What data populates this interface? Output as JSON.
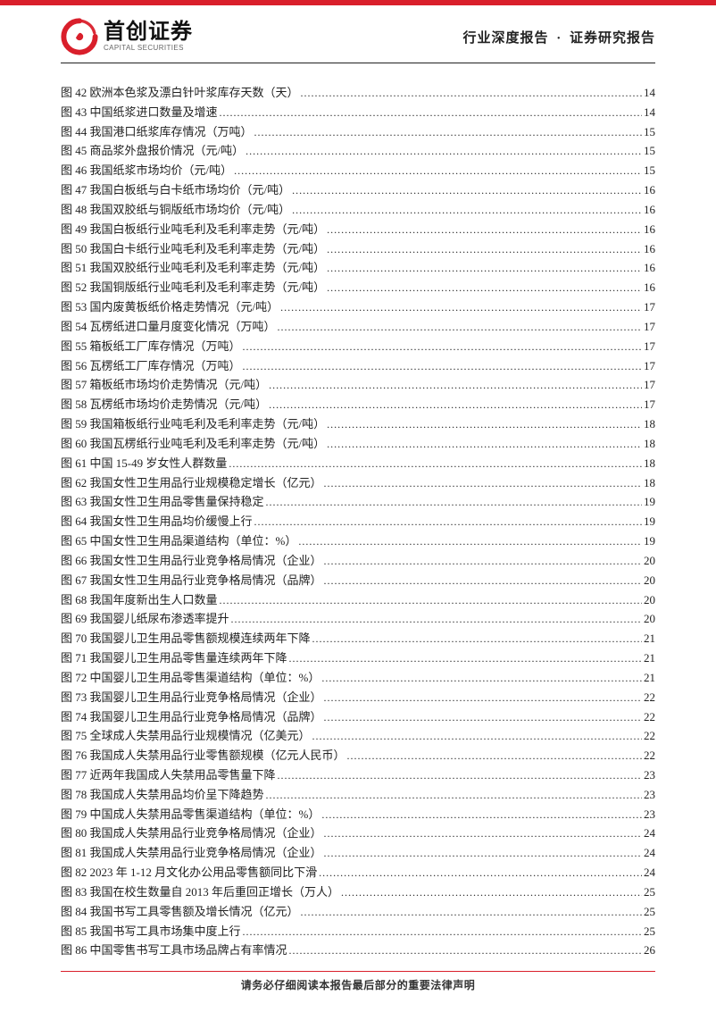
{
  "brand": {
    "name_cn": "首创证券",
    "name_en": "CAPITAL SECURITIES",
    "logo_color": "#d91f2b"
  },
  "header": {
    "left": "行业深度报告",
    "right": "证券研究报告",
    "separator": "·"
  },
  "colors": {
    "accent": "#d91f2b",
    "rule": "#222222",
    "text": "#222222",
    "background": "#ffffff"
  },
  "toc": [
    {
      "n": "图 42",
      "title": "欧洲本色浆及漂白针叶浆库存天数（天）",
      "page": "14"
    },
    {
      "n": "图 43",
      "title": "中国纸浆进口数量及增速",
      "page": "14"
    },
    {
      "n": "图 44",
      "title": "我国港口纸浆库存情况（万吨）",
      "page": "15"
    },
    {
      "n": "图 45",
      "title": "商品浆外盘报价情况（元/吨）",
      "page": "15"
    },
    {
      "n": "图 46",
      "title": "我国纸浆市场均价（元/吨）",
      "page": "15"
    },
    {
      "n": "图 47",
      "title": "我国白板纸与白卡纸市场均价（元/吨）",
      "page": "16"
    },
    {
      "n": "图 48",
      "title": "我国双胶纸与铜版纸市场均价（元/吨）",
      "page": "16"
    },
    {
      "n": "图 49",
      "title": "我国白板纸行业吨毛利及毛利率走势（元/吨）",
      "page": "16"
    },
    {
      "n": "图 50",
      "title": "我国白卡纸行业吨毛利及毛利率走势（元/吨）",
      "page": "16"
    },
    {
      "n": "图 51",
      "title": "我国双胶纸行业吨毛利及毛利率走势（元/吨）",
      "page": "16"
    },
    {
      "n": "图 52",
      "title": "我国铜版纸行业吨毛利及毛利率走势（元/吨）",
      "page": "16"
    },
    {
      "n": "图 53",
      "title": "国内废黄板纸价格走势情况（元/吨）",
      "page": "17"
    },
    {
      "n": "图 54",
      "title": "瓦楞纸进口量月度变化情况（万吨）",
      "page": "17"
    },
    {
      "n": "图 55",
      "title": "箱板纸工厂库存情况（万吨）",
      "page": "17"
    },
    {
      "n": "图 56",
      "title": "瓦楞纸工厂库存情况（万吨）",
      "page": "17"
    },
    {
      "n": "图 57",
      "title": "箱板纸市场均价走势情况（元/吨）",
      "page": "17"
    },
    {
      "n": "图 58",
      "title": "瓦楞纸市场均价走势情况（元/吨）",
      "page": "17"
    },
    {
      "n": "图 59",
      "title": "我国箱板纸行业吨毛利及毛利率走势（元/吨）",
      "page": "18"
    },
    {
      "n": "图 60",
      "title": "我国瓦楞纸行业吨毛利及毛利率走势（元/吨）",
      "page": "18"
    },
    {
      "n": "图 61",
      "title": "中国 15-49 岁女性人群数量",
      "page": "18"
    },
    {
      "n": "图 62",
      "title": "我国女性卫生用品行业规模稳定增长（亿元）",
      "page": "18"
    },
    {
      "n": "图 63",
      "title": "我国女性卫生用品零售量保持稳定",
      "page": "19"
    },
    {
      "n": "图 64",
      "title": "我国女性卫生用品均价缓慢上行",
      "page": "19"
    },
    {
      "n": "图 65",
      "title": "中国女性卫生用品渠道结构（单位：%）",
      "page": "19"
    },
    {
      "n": "图 66",
      "title": "我国女性卫生用品行业竞争格局情况（企业）",
      "page": "20"
    },
    {
      "n": "图 67",
      "title": "我国女性卫生用品行业竞争格局情况（品牌）",
      "page": "20"
    },
    {
      "n": "图 68",
      "title": "我国年度新出生人口数量",
      "page": "20"
    },
    {
      "n": "图 69",
      "title": "我国婴儿纸尿布渗透率提升",
      "page": "20"
    },
    {
      "n": "图 70",
      "title": "我国婴儿卫生用品零售额规模连续两年下降",
      "page": "21"
    },
    {
      "n": "图 71",
      "title": "我国婴儿卫生用品零售量连续两年下降",
      "page": "21"
    },
    {
      "n": "图 72",
      "title": "中国婴儿卫生用品零售渠道结构（单位：%）",
      "page": "21"
    },
    {
      "n": "图 73",
      "title": "我国婴儿卫生用品行业竞争格局情况（企业）",
      "page": "22"
    },
    {
      "n": "图 74",
      "title": "我国婴儿卫生用品行业竞争格局情况（品牌）",
      "page": "22"
    },
    {
      "n": "图 75",
      "title": "全球成人失禁用品行业规模情况（亿美元）",
      "page": "22"
    },
    {
      "n": "图 76",
      "title": "我国成人失禁用品行业零售额规模（亿元人民币）",
      "page": "22"
    },
    {
      "n": "图 77",
      "title": "近两年我国成人失禁用品零售量下降",
      "page": "23"
    },
    {
      "n": "图 78",
      "title": "我国成人失禁用品均价呈下降趋势",
      "page": "23"
    },
    {
      "n": "图 79",
      "title": "中国成人失禁用品零售渠道结构（单位：%）",
      "page": "23"
    },
    {
      "n": "图 80",
      "title": "我国成人失禁用品行业竞争格局情况（企业）",
      "page": "24"
    },
    {
      "n": "图 81",
      "title": "我国成人失禁用品行业竞争格局情况（企业）",
      "page": "24"
    },
    {
      "n": "图 82",
      "title": "2023 年 1-12 月文化办公用品零售额同比下滑",
      "page": "24"
    },
    {
      "n": "图 83",
      "title": "我国在校生数量自 2013 年后重回正增长（万人）",
      "page": "25"
    },
    {
      "n": "图 84",
      "title": "我国书写工具零售额及增长情况（亿元）",
      "page": "25"
    },
    {
      "n": "图 85",
      "title": "我国书写工具市场集中度上行",
      "page": "25"
    },
    {
      "n": "图 86",
      "title": "中国零售书写工具市场品牌占有率情况",
      "page": "26"
    }
  ],
  "footer": "请务必仔细阅读本报告最后部分的重要法律声明"
}
